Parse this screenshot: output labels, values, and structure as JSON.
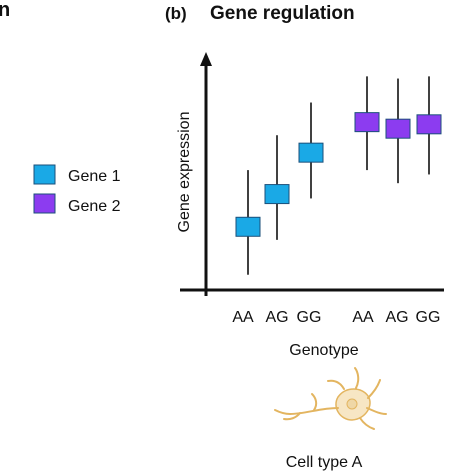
{
  "left_panel": {
    "title_fragment": "n"
  },
  "panel_label": "(b)",
  "title": "Gene regulation",
  "legend": [
    {
      "label": "Gene 1",
      "color": "#1aa9e6"
    },
    {
      "label": "Gene 2",
      "color": "#8c3cf0"
    }
  ],
  "chart_data": {
    "type": "scatter",
    "style": "boxplot-like markers with whiskers, no numeric scale printed",
    "title": "Gene regulation",
    "xlabel": "Genotype",
    "ylabel": "Gene expression",
    "y_ticks_shown": false,
    "categories": [
      "AA",
      "AG",
      "GG",
      "AA",
      "AG",
      "GG"
    ],
    "ylim": [
      0,
      10
    ],
    "grid": false,
    "legend_position": "left",
    "series": [
      {
        "name": "Gene 1",
        "color": "#1aa9e6",
        "points": [
          {
            "x": "AA",
            "center": 2.9,
            "low": 0.7,
            "high": 5.5
          },
          {
            "x": "AG",
            "center": 4.4,
            "low": 2.3,
            "high": 7.1
          },
          {
            "x": "GG",
            "center": 6.3,
            "low": 4.2,
            "high": 8.6
          }
        ]
      },
      {
        "name": "Gene 2",
        "color": "#8c3cf0",
        "points": [
          {
            "x": "AA",
            "center": 7.7,
            "low": 5.5,
            "high": 9.8
          },
          {
            "x": "AG",
            "center": 7.4,
            "low": 4.9,
            "high": 9.7
          },
          {
            "x": "GG",
            "center": 7.6,
            "low": 5.3,
            "high": 9.8
          }
        ]
      }
    ]
  },
  "cell_label": "Cell type A",
  "colors": {
    "axis": "#111111",
    "box_stroke": "#1b4f7a",
    "neuron_fill": "#f7e6c4",
    "neuron_stroke": "#e3b560",
    "nucleus": "#efd7a6"
  }
}
